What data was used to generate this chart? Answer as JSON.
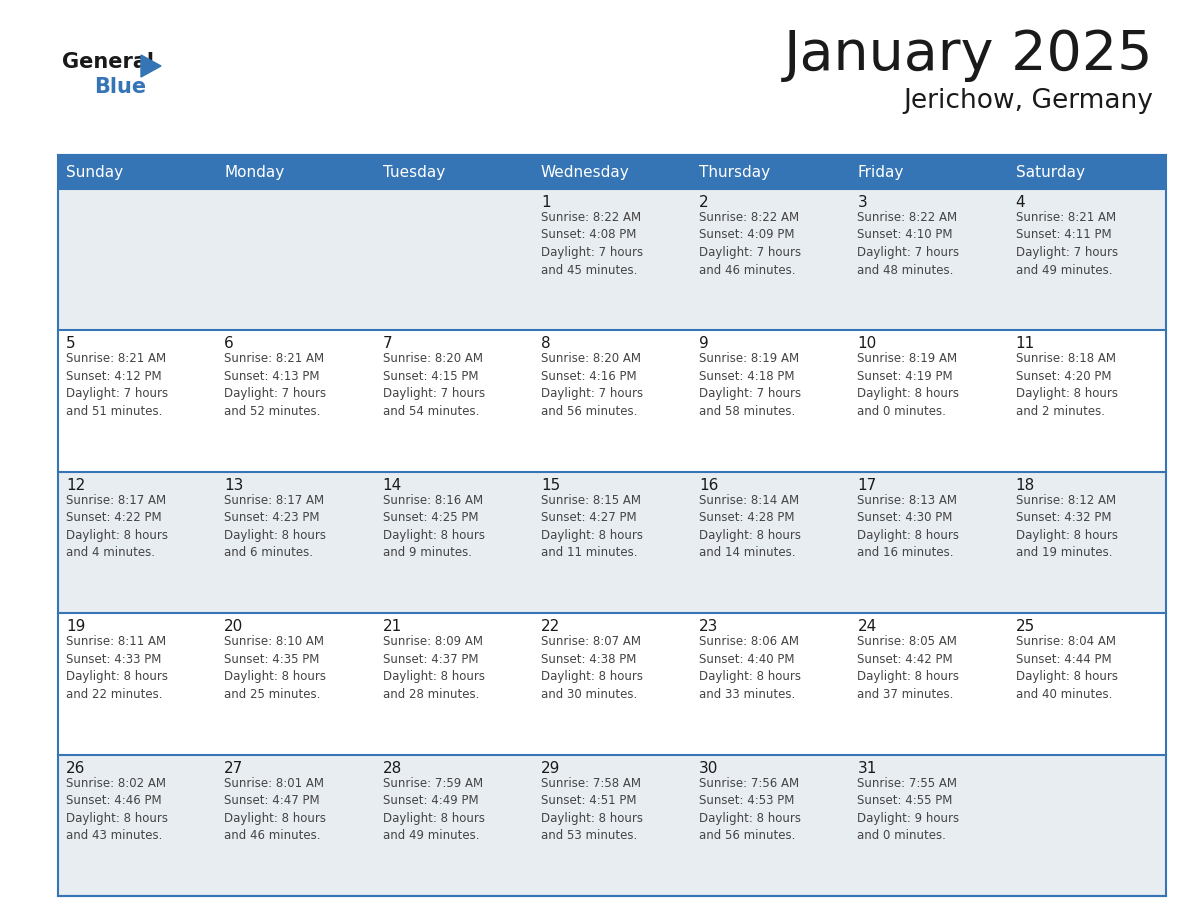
{
  "title": "January 2025",
  "subtitle": "Jerichow, Germany",
  "header_bg_color": "#3575b5",
  "header_text_color": "#ffffff",
  "cell_bg_light": "#e8edf2",
  "cell_bg_white": "#ffffff",
  "grid_color": "#3575b5",
  "day_headers": [
    "Sunday",
    "Monday",
    "Tuesday",
    "Wednesday",
    "Thursday",
    "Friday",
    "Saturday"
  ],
  "title_color": "#1a1a1a",
  "subtitle_color": "#1a1a1a",
  "cell_text_color": "#444444",
  "day_num_color": "#1a1a1a",
  "logo_general_color": "#1a1a1a",
  "logo_blue_color": "#3575b5",
  "logo_triangle_color": "#3575b5",
  "weeks": [
    [
      {
        "day": "",
        "info": ""
      },
      {
        "day": "",
        "info": ""
      },
      {
        "day": "",
        "info": ""
      },
      {
        "day": "1",
        "info": "Sunrise: 8:22 AM\nSunset: 4:08 PM\nDaylight: 7 hours\nand 45 minutes."
      },
      {
        "day": "2",
        "info": "Sunrise: 8:22 AM\nSunset: 4:09 PM\nDaylight: 7 hours\nand 46 minutes."
      },
      {
        "day": "3",
        "info": "Sunrise: 8:22 AM\nSunset: 4:10 PM\nDaylight: 7 hours\nand 48 minutes."
      },
      {
        "day": "4",
        "info": "Sunrise: 8:21 AM\nSunset: 4:11 PM\nDaylight: 7 hours\nand 49 minutes."
      }
    ],
    [
      {
        "day": "5",
        "info": "Sunrise: 8:21 AM\nSunset: 4:12 PM\nDaylight: 7 hours\nand 51 minutes."
      },
      {
        "day": "6",
        "info": "Sunrise: 8:21 AM\nSunset: 4:13 PM\nDaylight: 7 hours\nand 52 minutes."
      },
      {
        "day": "7",
        "info": "Sunrise: 8:20 AM\nSunset: 4:15 PM\nDaylight: 7 hours\nand 54 minutes."
      },
      {
        "day": "8",
        "info": "Sunrise: 8:20 AM\nSunset: 4:16 PM\nDaylight: 7 hours\nand 56 minutes."
      },
      {
        "day": "9",
        "info": "Sunrise: 8:19 AM\nSunset: 4:18 PM\nDaylight: 7 hours\nand 58 minutes."
      },
      {
        "day": "10",
        "info": "Sunrise: 8:19 AM\nSunset: 4:19 PM\nDaylight: 8 hours\nand 0 minutes."
      },
      {
        "day": "11",
        "info": "Sunrise: 8:18 AM\nSunset: 4:20 PM\nDaylight: 8 hours\nand 2 minutes."
      }
    ],
    [
      {
        "day": "12",
        "info": "Sunrise: 8:17 AM\nSunset: 4:22 PM\nDaylight: 8 hours\nand 4 minutes."
      },
      {
        "day": "13",
        "info": "Sunrise: 8:17 AM\nSunset: 4:23 PM\nDaylight: 8 hours\nand 6 minutes."
      },
      {
        "day": "14",
        "info": "Sunrise: 8:16 AM\nSunset: 4:25 PM\nDaylight: 8 hours\nand 9 minutes."
      },
      {
        "day": "15",
        "info": "Sunrise: 8:15 AM\nSunset: 4:27 PM\nDaylight: 8 hours\nand 11 minutes."
      },
      {
        "day": "16",
        "info": "Sunrise: 8:14 AM\nSunset: 4:28 PM\nDaylight: 8 hours\nand 14 minutes."
      },
      {
        "day": "17",
        "info": "Sunrise: 8:13 AM\nSunset: 4:30 PM\nDaylight: 8 hours\nand 16 minutes."
      },
      {
        "day": "18",
        "info": "Sunrise: 8:12 AM\nSunset: 4:32 PM\nDaylight: 8 hours\nand 19 minutes."
      }
    ],
    [
      {
        "day": "19",
        "info": "Sunrise: 8:11 AM\nSunset: 4:33 PM\nDaylight: 8 hours\nand 22 minutes."
      },
      {
        "day": "20",
        "info": "Sunrise: 8:10 AM\nSunset: 4:35 PM\nDaylight: 8 hours\nand 25 minutes."
      },
      {
        "day": "21",
        "info": "Sunrise: 8:09 AM\nSunset: 4:37 PM\nDaylight: 8 hours\nand 28 minutes."
      },
      {
        "day": "22",
        "info": "Sunrise: 8:07 AM\nSunset: 4:38 PM\nDaylight: 8 hours\nand 30 minutes."
      },
      {
        "day": "23",
        "info": "Sunrise: 8:06 AM\nSunset: 4:40 PM\nDaylight: 8 hours\nand 33 minutes."
      },
      {
        "day": "24",
        "info": "Sunrise: 8:05 AM\nSunset: 4:42 PM\nDaylight: 8 hours\nand 37 minutes."
      },
      {
        "day": "25",
        "info": "Sunrise: 8:04 AM\nSunset: 4:44 PM\nDaylight: 8 hours\nand 40 minutes."
      }
    ],
    [
      {
        "day": "26",
        "info": "Sunrise: 8:02 AM\nSunset: 4:46 PM\nDaylight: 8 hours\nand 43 minutes."
      },
      {
        "day": "27",
        "info": "Sunrise: 8:01 AM\nSunset: 4:47 PM\nDaylight: 8 hours\nand 46 minutes."
      },
      {
        "day": "28",
        "info": "Sunrise: 7:59 AM\nSunset: 4:49 PM\nDaylight: 8 hours\nand 49 minutes."
      },
      {
        "day": "29",
        "info": "Sunrise: 7:58 AM\nSunset: 4:51 PM\nDaylight: 8 hours\nand 53 minutes."
      },
      {
        "day": "30",
        "info": "Sunrise: 7:56 AM\nSunset: 4:53 PM\nDaylight: 8 hours\nand 56 minutes."
      },
      {
        "day": "31",
        "info": "Sunrise: 7:55 AM\nSunset: 4:55 PM\nDaylight: 9 hours\nand 0 minutes."
      },
      {
        "day": "",
        "info": ""
      }
    ]
  ]
}
